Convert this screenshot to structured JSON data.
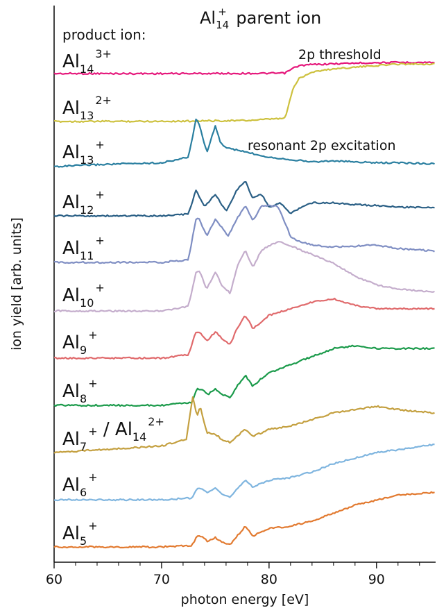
{
  "chart_data": {
    "type": "line",
    "title": "Al14+ parent ion",
    "title_parts": {
      "base": "Al",
      "sub": "14",
      "sup": "+",
      "rest": " parent ion"
    },
    "xlabel": "photon energy [eV]",
    "ylabel": "ion yield [arb. units]",
    "xlim": [
      60,
      95.5
    ],
    "xticks": [
      60,
      70,
      80,
      90
    ],
    "grid": false,
    "annotations": {
      "product_ion": "product ion:",
      "threshold": "2p threshold",
      "resonant": "resonant 2p excitation"
    },
    "series": [
      {
        "name": "Al14 3+",
        "label": {
          "base": "Al",
          "sub": "14",
          "sup": "3+"
        },
        "color": "#e5177b",
        "x": [
          60,
          70,
          80,
          81.5,
          82.2,
          82.8,
          84,
          86,
          88,
          90,
          92,
          94,
          95.5
        ],
        "y": [
          101,
          101,
          101.5,
          102,
          112,
          118,
          120.5,
          122,
          123.5,
          124.5,
          125,
          125,
          125
        ]
      },
      {
        "name": "Al13 2+",
        "label": {
          "base": "Al",
          "sub": "13",
          "sup": "2+"
        },
        "color": "#cdc13e",
        "x": [
          60,
          72,
          74,
          78,
          81.5,
          82.2,
          82.8,
          84,
          86,
          88,
          90,
          92,
          95.5
        ],
        "y": [
          0,
          0.1,
          0.2,
          0.3,
          1,
          10,
          13.5,
          15.5,
          16.5,
          17,
          17.5,
          18,
          18
        ]
      },
      {
        "name": "Al13 +",
        "label": {
          "base": "Al",
          "sub": "13",
          "sup": "+"
        },
        "color": "#2a7fa0",
        "x": [
          60,
          65,
          70,
          72.5,
          73.2,
          73.5,
          74.2,
          75,
          75.5,
          76,
          77,
          78,
          80,
          82,
          84,
          86,
          88,
          90,
          92,
          95.5
        ],
        "y": [
          0,
          0.5,
          0.8,
          2,
          10,
          9,
          3,
          8.5,
          5,
          4,
          3.5,
          3,
          2,
          1.5,
          1,
          1.2,
          1,
          0.8,
          0.8,
          0.6
        ]
      },
      {
        "name": "Al12 +",
        "label": {
          "base": "Al",
          "sub": "12",
          "sup": "+"
        },
        "color": "#2a5f85",
        "x": [
          60,
          70,
          72.5,
          73.2,
          74,
          75,
          76,
          77,
          77.8,
          78.5,
          79.3,
          80,
          81,
          82,
          83,
          84,
          86,
          88,
          90,
          92,
          95.5
        ],
        "y": [
          0,
          0,
          0.2,
          3,
          1,
          2.5,
          0.5,
          3,
          4,
          2,
          2.5,
          1,
          1.5,
          0.3,
          1,
          1.5,
          1.5,
          1.3,
          1.2,
          1,
          1
        ]
      },
      {
        "name": "Al11 +",
        "label": {
          "base": "Al",
          "sub": "11",
          "sup": "+"
        },
        "color": "#7f8ec3",
        "x": [
          60,
          70,
          72.5,
          73.2,
          73.5,
          74.2,
          75,
          75.5,
          76.2,
          77,
          77.8,
          78.5,
          79.3,
          80,
          80.8,
          81.5,
          82,
          83,
          85,
          87,
          90,
          92,
          95.5
        ],
        "y": [
          0,
          0,
          0.3,
          5,
          5,
          3,
          5,
          4.2,
          3,
          5,
          6.5,
          4.8,
          6.5,
          6.5,
          6.5,
          4.5,
          3,
          2.3,
          1.8,
          1.8,
          2,
          1.6,
          1.3
        ]
      },
      {
        "name": "Al10 +",
        "label": {
          "base": "Al",
          "sub": "10",
          "sup": "+"
        },
        "color": "#c4adcc",
        "x": [
          60,
          70,
          72.5,
          73.2,
          73.6,
          74.2,
          75,
          75.6,
          76.4,
          77,
          77.8,
          78.5,
          79.3,
          80,
          81,
          82,
          84,
          86,
          88,
          90,
          92,
          95.5
        ],
        "y": [
          0,
          0,
          0.5,
          4.5,
          4.5,
          2.5,
          4.5,
          3,
          2,
          5,
          7,
          5,
          7,
          7.5,
          8,
          7.5,
          6.5,
          5.5,
          4,
          3,
          2.5,
          2.2
        ]
      },
      {
        "name": "Al9 +",
        "label": {
          "base": "Al",
          "sub": "9",
          "sup": "+"
        },
        "color": "#e06a6c",
        "x": [
          60,
          70,
          72.5,
          73.2,
          73.6,
          74.2,
          75,
          75.6,
          76.4,
          77,
          77.8,
          78.5,
          79.3,
          80,
          82,
          84,
          86,
          88,
          90,
          92,
          95.5
        ],
        "y": [
          0,
          0,
          0.5,
          4,
          4,
          2.5,
          4,
          3,
          2,
          4.5,
          6.5,
          4.5,
          5.5,
          6.5,
          7.5,
          8.5,
          9,
          8,
          7.5,
          7.5,
          7.5
        ]
      },
      {
        "name": "Al8 +",
        "label": {
          "base": "Al",
          "sub": "8",
          "sup": "+"
        },
        "color": "#1a9a4a",
        "x": [
          60,
          70,
          72.8,
          73.3,
          73.8,
          74.3,
          75,
          75.6,
          76.4,
          77,
          77.8,
          78.5,
          79.3,
          80,
          82,
          84,
          86,
          88,
          90,
          92,
          95.5
        ],
        "y": [
          0,
          0,
          0.5,
          3,
          3,
          2,
          3,
          2,
          1.5,
          3.5,
          5.5,
          3.5,
          5,
          6,
          7.5,
          9,
          10.5,
          11,
          10.5,
          10.5,
          10.5
        ]
      },
      {
        "name": "Al7 + / Al14 2+",
        "label": {
          "base": "Al",
          "sub": "7",
          "sup": "+",
          "sep": " / ",
          "base2": "Al",
          "sub2": "14",
          "sup2": "2+"
        },
        "color": "#c4a040",
        "x": [
          60,
          65,
          70,
          72.3,
          72.9,
          73.3,
          73.6,
          74.2,
          75,
          75.6,
          76.4,
          77,
          77.8,
          78.5,
          79.3,
          80,
          82,
          84,
          86,
          88,
          90,
          92,
          95.5
        ],
        "y": [
          0,
          0.5,
          1,
          2,
          8.5,
          5.5,
          7,
          3,
          2.8,
          2,
          1.5,
          2.5,
          3.5,
          2.5,
          3,
          3.5,
          4,
          5,
          6,
          6.5,
          7,
          6.5,
          6
        ]
      },
      {
        "name": "Al6 +",
        "label": {
          "base": "Al",
          "sub": "6",
          "sup": "+"
        },
        "color": "#7fb5df",
        "x": [
          60,
          70,
          72.8,
          73.3,
          73.8,
          74.3,
          75,
          75.6,
          76.4,
          77,
          77.8,
          78.5,
          79.3,
          80,
          82,
          84,
          86,
          88,
          90,
          92,
          95.5
        ],
        "y": [
          0,
          0,
          0.3,
          2,
          2,
          1.2,
          2,
          1,
          0.5,
          2,
          3.5,
          2.2,
          3,
          3.5,
          4,
          5,
          6.5,
          7.5,
          8.5,
          9,
          10
        ]
      },
      {
        "name": "Al5 +",
        "label": {
          "base": "Al",
          "sub": "5",
          "sup": "+"
        },
        "color": "#e27a30",
        "x": [
          60,
          70,
          72.8,
          73.3,
          73.8,
          74.3,
          75,
          75.6,
          76.4,
          77,
          77.8,
          78.5,
          79.3,
          80,
          82,
          84,
          86,
          88,
          90,
          92,
          95.5
        ],
        "y": [
          0,
          0,
          0.3,
          2,
          2,
          1,
          1.8,
          1,
          0.5,
          2,
          4,
          2,
          3,
          3.5,
          4,
          5,
          6.5,
          8,
          9,
          10,
          10.5
        ]
      }
    ]
  }
}
